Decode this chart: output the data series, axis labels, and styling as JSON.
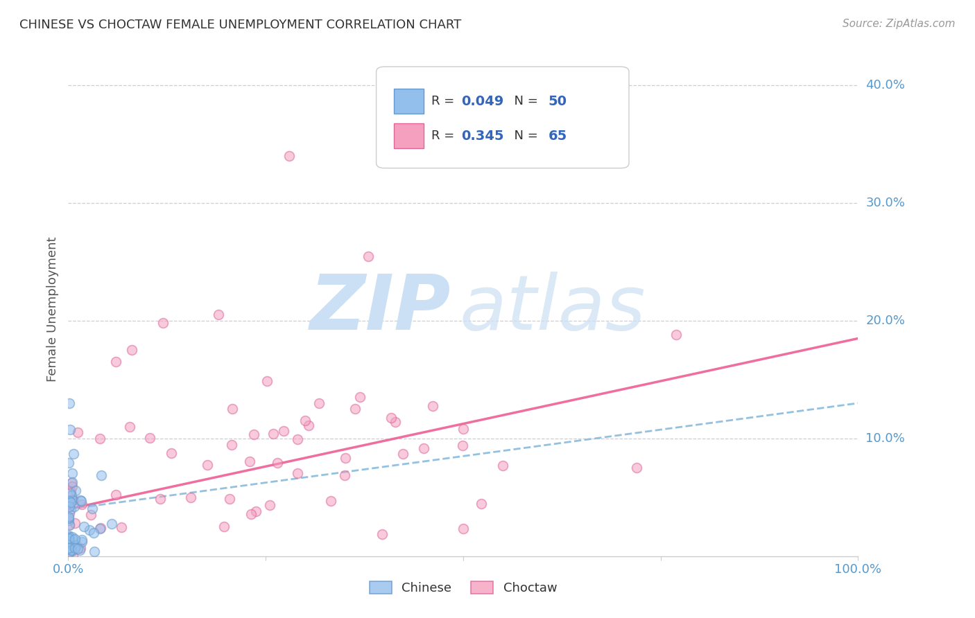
{
  "title": "CHINESE VS CHOCTAW FEMALE UNEMPLOYMENT CORRELATION CHART",
  "source": "Source: ZipAtlas.com",
  "ylabel": "Female Unemployment",
  "xlim": [
    0.0,
    1.0
  ],
  "ylim": [
    0.0,
    0.42
  ],
  "ytick_vals": [
    0.1,
    0.2,
    0.3,
    0.4
  ],
  "ytick_labels": [
    "10.0%",
    "20.0%",
    "30.0%",
    "40.0%"
  ],
  "xtick_vals": [
    0.0,
    0.25,
    0.5,
    0.75,
    1.0
  ],
  "xtick_labels": [
    "0.0%",
    "",
    "",
    "",
    "100.0%"
  ],
  "legend_R1": "R = 0.049",
  "legend_N1": "N = 50",
  "legend_R2": "R = 0.345",
  "legend_N2": "N = 65",
  "chinese_color": "#92BFEC",
  "choctaw_color": "#F4A0BE",
  "chinese_edge_color": "#6699CC",
  "choctaw_edge_color": "#DD6699",
  "chinese_line_color": "#88BBDD",
  "choctaw_line_color": "#EE6699",
  "tick_label_color": "#5599CC",
  "title_color": "#333333",
  "source_color": "#999999",
  "ylabel_color": "#555555",
  "legend_text_color": "#333333",
  "legend_val_color": "#3366BB",
  "grid_color": "#CCCCDD",
  "background_color": "#FFFFFF",
  "watermark_zip_color": "#CCE0F5",
  "watermark_atlas_color": "#CCE0F5",
  "chinese_line_slope": 0.09,
  "chinese_line_intercept": 0.04,
  "choctaw_line_slope": 0.145,
  "choctaw_line_intercept": 0.04,
  "scatter_size": 100,
  "scatter_alpha": 0.55,
  "chinese_seed": 42,
  "choctaw_seed": 7
}
